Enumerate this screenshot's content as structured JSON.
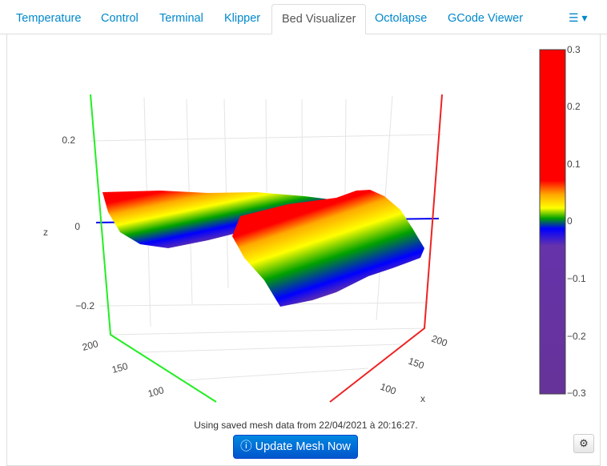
{
  "tabs": [
    {
      "label": "Temperature"
    },
    {
      "label": "Control"
    },
    {
      "label": "Terminal"
    },
    {
      "label": "Klipper"
    },
    {
      "label": "Bed Visualizer",
      "active": true
    },
    {
      "label": "Octolapse"
    },
    {
      "label": "GCode Viewer"
    }
  ],
  "menu_icon": "hamburger-dropdown-icon",
  "plot": {
    "z_axis": {
      "title": "z",
      "ticks": [
        "0.2",
        "0",
        "−0.2"
      ]
    },
    "y_axis": {
      "ticks": [
        "200",
        "150",
        "100"
      ]
    },
    "x_axis": {
      "title": "x",
      "ticks": [
        "200",
        "150",
        "100"
      ]
    },
    "colorbar": {
      "ticks": [
        "0.3",
        "0.2",
        "0.1",
        "0",
        "−0.1",
        "−0.2",
        "−0.3"
      ],
      "range": [
        -0.3,
        0.3
      ]
    }
  },
  "info_text": "Using saved mesh data from 22/04/2021 à 20:16:27.",
  "update_button": {
    "label": "Update Mesh Now",
    "icon": "info-circle-icon"
  },
  "settings_button": {
    "icon": "gear-icon"
  }
}
